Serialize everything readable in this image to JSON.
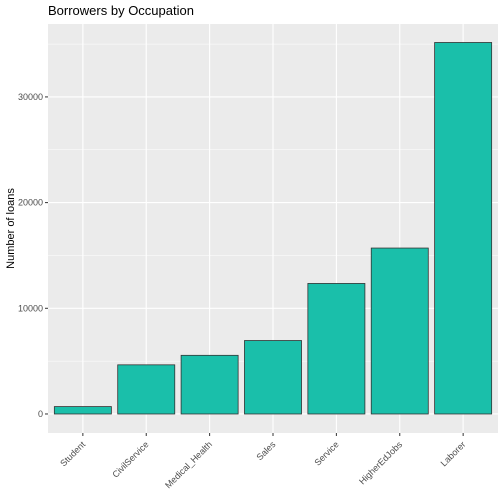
{
  "chart_data": {
    "type": "bar",
    "title": "Borrowers by Occupation",
    "xlabel": "",
    "ylabel": "Number of loans",
    "categories": [
      "Student",
      "CivilService",
      "Medical_Health",
      "Sales",
      "Service",
      "HigherEdJobs",
      "Laborer"
    ],
    "values": [
      700,
      4650,
      5550,
      6950,
      12350,
      15700,
      35150
    ],
    "ylim": [
      0,
      36900
    ],
    "yticks": [
      0,
      10000,
      20000,
      30000
    ],
    "ytick_labels": [
      "0",
      "10000",
      "20000",
      "30000"
    ],
    "grid": true,
    "legend": "none",
    "bar_color": "#1ABFAA",
    "bar_outline": "#333333",
    "panel_background": "#EBEBEB",
    "grid_color": "#FFFFFF"
  }
}
